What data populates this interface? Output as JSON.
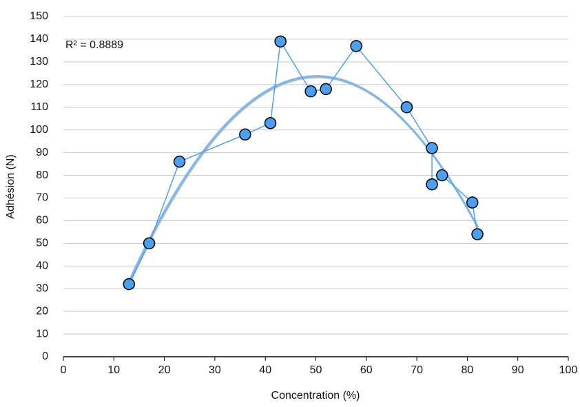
{
  "chart_data": {
    "type": "scatter",
    "x_label": "Concentration (%)",
    "y_label": "Adhésion (N)",
    "annotation": "R² = 0.8889",
    "series": [
      {
        "name": "Adhésion",
        "color": "#4a9ff0",
        "x": [
          13,
          17,
          23,
          36,
          41,
          43,
          49,
          52,
          58,
          68,
          73,
          73,
          75,
          81,
          82
        ],
        "values": [
          32,
          50,
          86,
          98,
          103,
          139,
          117,
          118,
          137,
          110,
          92,
          76,
          80,
          68,
          54
        ]
      }
    ],
    "trendline": {
      "type": "polynomial",
      "order": 2,
      "color": "#79b8ef"
    },
    "xlim": [
      0,
      100
    ],
    "xticks": [
      0,
      10,
      20,
      30,
      40,
      50,
      60,
      70,
      80,
      90,
      100
    ],
    "ylim": [
      0,
      150
    ],
    "yticks": [
      0,
      10,
      20,
      30,
      40,
      50,
      60,
      70,
      80,
      90,
      100,
      110,
      120,
      130,
      140,
      150
    ],
    "grid": true
  }
}
